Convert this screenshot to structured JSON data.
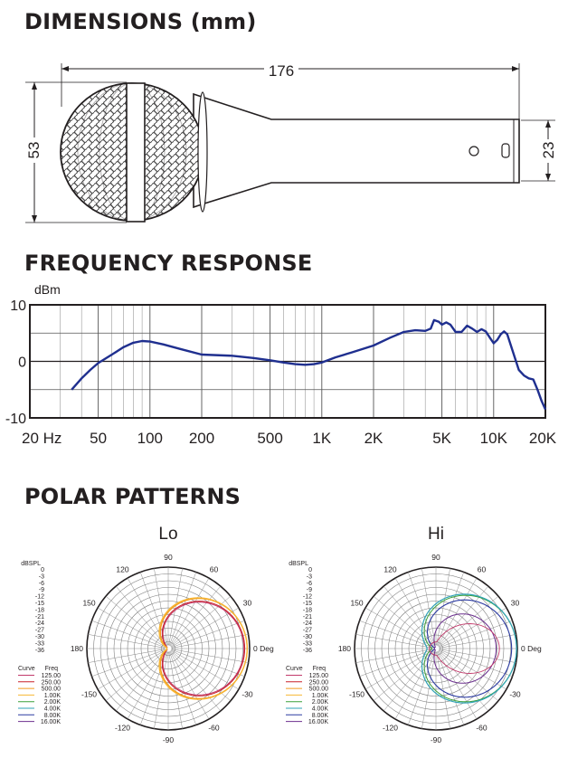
{
  "headings": {
    "dimensions": "DIMENSIONS (mm)",
    "frequency": "FREQUENCY RESPONSE",
    "polar": "POLAR PATTERNS"
  },
  "dimensions": {
    "length": "176",
    "head_diameter": "53",
    "handle_end_diameter": "23"
  },
  "chart_data": {
    "type": "line",
    "title": "FREQUENCY RESPONSE",
    "ylabel": "dBm",
    "xscale": "log",
    "xlim": [
      20,
      20000
    ],
    "ylim": [
      -10,
      10
    ],
    "x_tick_labels": [
      "20 Hz",
      "50",
      "100",
      "200",
      "500",
      "1K",
      "2K",
      "5K",
      "10K",
      "20K"
    ],
    "y_tick_labels": [
      "10",
      "0",
      "-10"
    ],
    "line_color": "#1f2f8f",
    "series": [
      {
        "x": [
          35,
          40,
          45,
          50,
          60,
          70,
          80,
          90,
          100,
          120,
          150,
          200,
          300,
          400,
          500,
          600,
          700,
          800,
          900,
          1000,
          1200,
          1500,
          2000,
          2500,
          3000,
          3500,
          4000,
          4300,
          4500,
          4800,
          5000,
          5300,
          5600,
          6000,
          6500,
          7000,
          7500,
          8000,
          8500,
          9000,
          9500,
          10000,
          10500,
          11000,
          11500,
          12000,
          13000,
          14000,
          15000,
          16000,
          17000,
          18000,
          19000,
          20000
        ],
        "y": [
          -5,
          -3,
          -1.5,
          -0.3,
          1.2,
          2.5,
          3.3,
          3.6,
          3.5,
          3,
          2.2,
          1.2,
          1,
          0.6,
          0.2,
          -0.2,
          -0.5,
          -0.6,
          -0.5,
          -0.2,
          0.7,
          1.6,
          2.8,
          4.2,
          5.2,
          5.5,
          5.4,
          5.8,
          7.3,
          7,
          6.5,
          6.9,
          6.5,
          5.2,
          5.2,
          6.3,
          5.8,
          5.2,
          5.7,
          5.3,
          4.2,
          3.2,
          3.8,
          4.8,
          5.3,
          4.8,
          1.5,
          -1.5,
          -2.5,
          -3,
          -3.2,
          -5,
          -7,
          -8.5
        ]
      }
    ]
  },
  "polar": {
    "scale_unit": "dBSPL",
    "scale_values": [
      "0",
      "-3",
      "-6",
      "-9",
      "-12",
      "-15",
      "-18",
      "-21",
      "-24",
      "-27",
      "-30",
      "-33",
      "-36"
    ],
    "angle_labels": [
      "90",
      "60",
      "30",
      "0 Deg",
      "-30",
      "-60",
      "-90",
      "-120",
      "-150",
      "180",
      "150",
      "120"
    ],
    "legend_header_curve": "Curve",
    "legend_header_freq": "Freq",
    "legend": [
      {
        "freq": "125.00",
        "color": "#c23a6b"
      },
      {
        "freq": "250.00",
        "color": "#c8202a"
      },
      {
        "freq": "500.00",
        "color": "#f39a1e"
      },
      {
        "freq": "1.00K",
        "color": "#f7b733"
      },
      {
        "freq": "2.00K",
        "color": "#3aa039"
      },
      {
        "freq": "4.00K",
        "color": "#2fa3b6"
      },
      {
        "freq": "8.00K",
        "color": "#2b3aa1"
      },
      {
        "freq": "16.00K",
        "color": "#6b2f8e"
      }
    ],
    "plots": [
      {
        "title": "Lo"
      },
      {
        "title": "Hi"
      }
    ]
  }
}
